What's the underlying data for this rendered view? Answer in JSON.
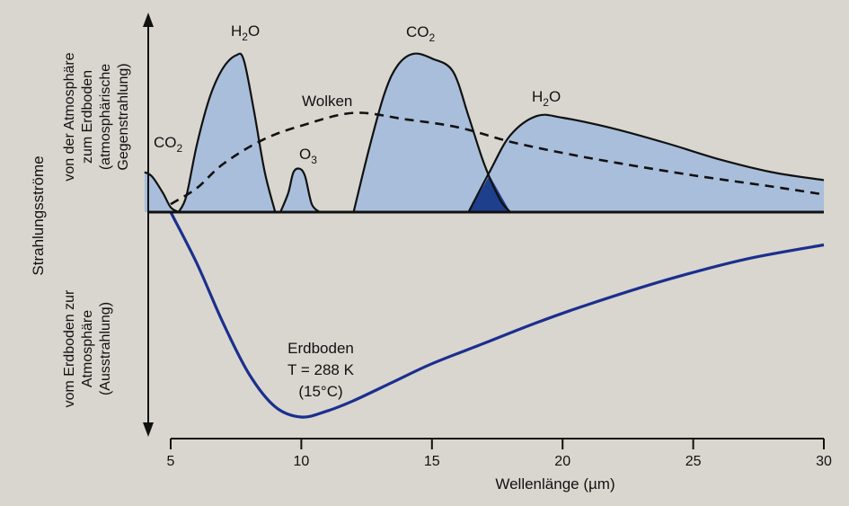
{
  "chart_data": {
    "type": "area",
    "xlabel": "Wellenlänge (µm)",
    "x_ticks": [
      "5",
      "10",
      "15",
      "20",
      "25",
      "30"
    ],
    "xlim": [
      4,
      30
    ],
    "axis_groups": {
      "outer": "Strahlungsströme",
      "upper": "von der Atmosphäre zum Erdboden (atmosphärische Gegenstrahlung)",
      "lower": "vom Erdboden zur Atmosphäre (Ausstrahlung)"
    },
    "upper_labels": {
      "upper_line_1": "von der Atmosphäre",
      "upper_line_2": "zum Erdboden",
      "upper_line_3": "(atmosphärische",
      "upper_line_4": "Gegenstrahlung)"
    },
    "lower_labels": {
      "lower_line_1": "vom Erdboden zur",
      "lower_line_2": "Atmosphäre",
      "lower_line_3": "(Ausstrahlung)"
    },
    "colors": {
      "band_fill": "#a9bedb",
      "overlap_fill": "#1d3f8c",
      "ground_curve": "#1b2f8e",
      "outline": "#111111",
      "background": "#d9d6cf"
    },
    "series": [
      {
        "name": "CO2",
        "role": "absorption band (downward)",
        "x": [
          4.0,
          4.3,
          4.7,
          5.0,
          5.3
        ],
        "y": [
          0.25,
          0.22,
          0.12,
          0.03,
          0.0
        ]
      },
      {
        "name": "H2O",
        "role": "absorption band (downward)",
        "x": [
          5.3,
          5.6,
          6.0,
          6.5,
          7.0,
          7.5,
          7.8,
          8.2,
          8.6,
          9.0
        ],
        "y": [
          0.0,
          0.1,
          0.42,
          0.72,
          0.9,
          0.98,
          0.95,
          0.62,
          0.25,
          0.0
        ]
      },
      {
        "name": "O3",
        "role": "absorption band (downward)",
        "x": [
          9.2,
          9.5,
          9.7,
          9.95,
          10.15,
          10.4,
          10.7
        ],
        "y": [
          0.0,
          0.12,
          0.25,
          0.27,
          0.22,
          0.05,
          0.0
        ]
      },
      {
        "name": "CO2",
        "role": "absorption band (downward)",
        "x": [
          12.0,
          12.6,
          13.2,
          13.7,
          14.3,
          15.0,
          15.8,
          16.4,
          17.0,
          17.6,
          18.0
        ],
        "y": [
          0.0,
          0.4,
          0.75,
          0.92,
          0.99,
          0.96,
          0.88,
          0.6,
          0.3,
          0.08,
          0.0
        ]
      },
      {
        "name": "H2O",
        "role": "absorption band (downward)",
        "x": [
          16.4,
          17.2,
          18.0,
          19.0,
          20.0,
          22.0,
          24.0,
          26.0,
          28.0,
          30.0
        ],
        "y": [
          0.0,
          0.25,
          0.48,
          0.6,
          0.59,
          0.52,
          0.43,
          0.33,
          0.25,
          0.2
        ]
      },
      {
        "name": "Wolken",
        "role": "dashed curve (downward)",
        "x": [
          5.0,
          6.0,
          7.0,
          8.5,
          10.0,
          12.0,
          14.0,
          16.0,
          18.0,
          20.0,
          22.0,
          25.0,
          28.0,
          30.0
        ],
        "y": [
          0.05,
          0.15,
          0.3,
          0.45,
          0.54,
          0.62,
          0.58,
          0.53,
          0.44,
          0.37,
          0.31,
          0.23,
          0.16,
          0.11
        ]
      },
      {
        "name": "Erdboden",
        "role": "emission curve (upward, negative)",
        "x": [
          5.0,
          6.0,
          7.0,
          8.0,
          9.0,
          10.0,
          11.0,
          12.0,
          13.5,
          15.0,
          17.0,
          19.0,
          21.0,
          24.0,
          27.0,
          30.0
        ],
        "y": [
          0.0,
          -0.25,
          -0.54,
          -0.79,
          -0.95,
          -1.0,
          -0.97,
          -0.92,
          -0.83,
          -0.74,
          -0.64,
          -0.54,
          -0.45,
          -0.33,
          -0.23,
          -0.16
        ]
      }
    ],
    "overlap_region": {
      "x": [
        16.4,
        17.2,
        18.0
      ],
      "y": [
        0.0,
        0.23,
        0.0
      ]
    },
    "annotations": {
      "co2_left": "CO",
      "co2_left_sub": "2",
      "h2o_left": "H",
      "h2o_left_sub": "2",
      "h2o_left_tail": "O",
      "o3": "O",
      "o3_sub": "3",
      "wolken": "Wolken",
      "co2_right": "CO",
      "co2_right_sub": "2",
      "h2o_right": "H",
      "h2o_right_sub": "2",
      "h2o_right_tail": "O",
      "erdboden_1": "Erdboden",
      "erdboden_2": "T = 288 K",
      "erdboden_3": "(15°C)"
    }
  }
}
